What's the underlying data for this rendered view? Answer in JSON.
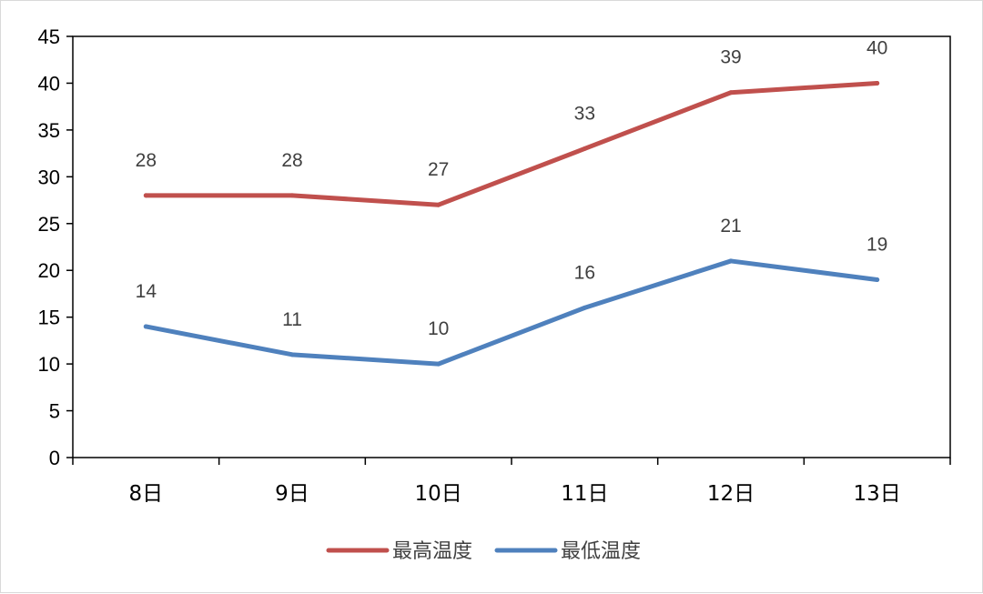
{
  "chart_data": {
    "type": "line",
    "categories": [
      "8日",
      "9日",
      "10日",
      "11日",
      "12日",
      "13日"
    ],
    "series": [
      {
        "name": "最高温度",
        "values": [
          28,
          28,
          27,
          33,
          39,
          40
        ],
        "color": "#c0504d"
      },
      {
        "name": "最低温度",
        "values": [
          14,
          11,
          10,
          16,
          21,
          19
        ],
        "color": "#4f81bd"
      }
    ],
    "ylim": [
      0,
      45
    ],
    "yticks": [
      0,
      5,
      10,
      15,
      20,
      25,
      30,
      35,
      40,
      45
    ],
    "data_labels": true,
    "grid": false,
    "legend": "bottom"
  }
}
